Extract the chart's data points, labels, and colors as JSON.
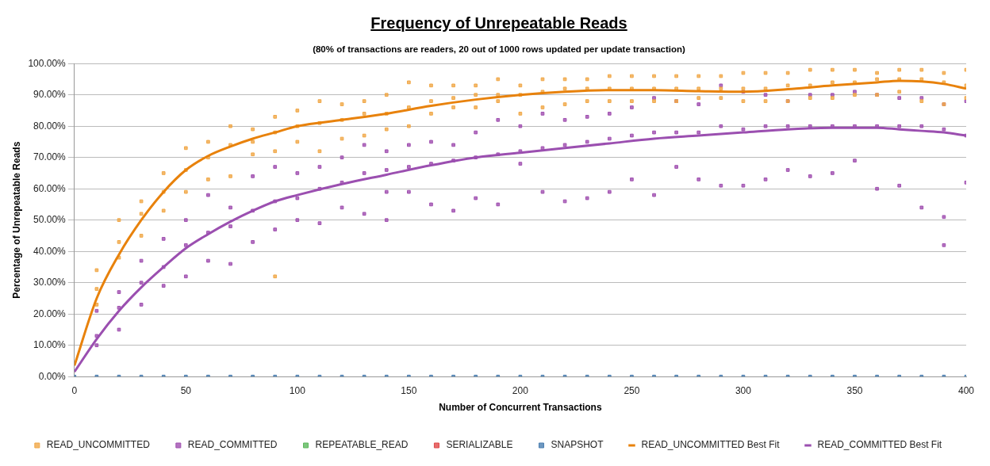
{
  "chart_data": {
    "type": "scatter",
    "title": "Frequency of Unrepeatable Reads",
    "subtitle": "(80% of transactions are readers, 20 out of 1000 rows updated per update transaction)",
    "xlabel": "Number of Concurrent Transactions",
    "ylabel": "Percentage of Unrepeatable Reads",
    "xlim": [
      0,
      400
    ],
    "xticks": [
      0,
      50,
      100,
      150,
      200,
      250,
      300,
      350,
      400
    ],
    "ylim": [
      0,
      100
    ],
    "yticks": [
      {
        "value": 0,
        "label": "0.00%"
      },
      {
        "value": 10,
        "label": "10.00%"
      },
      {
        "value": 20,
        "label": "20.00%"
      },
      {
        "value": 30,
        "label": "30.00%"
      },
      {
        "value": 40,
        "label": "40.00%"
      },
      {
        "value": 50,
        "label": "50.00%"
      },
      {
        "value": 60,
        "label": "60.00%"
      },
      {
        "value": 70,
        "label": "70.00%"
      },
      {
        "value": 80,
        "label": "80.00%"
      },
      {
        "value": 90,
        "label": "90.00%"
      },
      {
        "value": 100,
        "label": "100.00%"
      }
    ],
    "grid": "y",
    "legend": "bottom",
    "marker": "square",
    "series": [
      {
        "name": "READ_UNCOMMITTED",
        "color": "#f0a848",
        "x": [
          10,
          10,
          10,
          20,
          20,
          20,
          30,
          30,
          30,
          40,
          40,
          40,
          50,
          50,
          50,
          60,
          60,
          60,
          70,
          70,
          70,
          80,
          80,
          80,
          90,
          90,
          90,
          90,
          100,
          100,
          100,
          110,
          110,
          110,
          120,
          120,
          120,
          130,
          130,
          130,
          140,
          140,
          140,
          150,
          150,
          150,
          160,
          160,
          160,
          170,
          170,
          170,
          180,
          180,
          180,
          190,
          190,
          190,
          200,
          200,
          200,
          210,
          210,
          210,
          220,
          220,
          220,
          230,
          230,
          230,
          240,
          240,
          240,
          250,
          250,
          250,
          260,
          260,
          260,
          270,
          270,
          270,
          280,
          280,
          280,
          290,
          290,
          290,
          300,
          300,
          300,
          310,
          310,
          310,
          320,
          320,
          320,
          330,
          330,
          330,
          340,
          340,
          340,
          350,
          350,
          350,
          360,
          360,
          360,
          370,
          370,
          370,
          380,
          380,
          380,
          390,
          390,
          390,
          400,
          400,
          400
        ],
        "values": [
          23,
          28,
          34,
          38,
          43,
          50,
          45,
          52,
          56,
          53,
          59,
          65,
          59,
          66,
          73,
          63,
          70,
          75,
          64,
          74,
          80,
          71,
          75,
          79,
          32,
          72,
          78,
          83,
          75,
          80,
          85,
          72,
          81,
          88,
          76,
          82,
          87,
          77,
          84,
          88,
          79,
          84,
          90,
          80,
          86,
          94,
          84,
          88,
          93,
          86,
          89,
          93,
          86,
          90,
          93,
          88,
          90,
          95,
          84,
          90,
          93,
          86,
          91,
          95,
          87,
          92,
          95,
          88,
          92,
          95,
          88,
          92,
          96,
          88,
          92,
          96,
          88,
          92,
          96,
          88,
          92,
          96,
          89,
          92,
          96,
          89,
          92,
          96,
          88,
          92,
          97,
          88,
          92,
          97,
          88,
          93,
          97,
          89,
          93,
          98,
          89,
          94,
          98,
          90,
          94,
          98,
          90,
          95,
          97,
          91,
          95,
          98,
          88,
          95,
          98,
          87,
          94,
          97,
          89,
          93,
          98
        ]
      },
      {
        "name": "READ_COMMITTED",
        "color": "#a050b0",
        "x": [
          10,
          10,
          10,
          20,
          20,
          20,
          30,
          30,
          30,
          40,
          40,
          40,
          50,
          50,
          50,
          60,
          60,
          60,
          70,
          70,
          70,
          80,
          80,
          80,
          90,
          90,
          90,
          100,
          100,
          100,
          110,
          110,
          110,
          120,
          120,
          120,
          130,
          130,
          130,
          140,
          140,
          140,
          140,
          150,
          150,
          150,
          160,
          160,
          160,
          170,
          170,
          170,
          180,
          180,
          180,
          190,
          190,
          190,
          200,
          200,
          200,
          210,
          210,
          210,
          220,
          220,
          220,
          230,
          230,
          230,
          240,
          240,
          240,
          250,
          250,
          250,
          260,
          260,
          260,
          270,
          270,
          270,
          280,
          280,
          280,
          290,
          290,
          290,
          300,
          300,
          300,
          310,
          310,
          310,
          320,
          320,
          320,
          330,
          330,
          330,
          340,
          340,
          340,
          350,
          350,
          350,
          360,
          360,
          360,
          370,
          370,
          370,
          380,
          380,
          380,
          390,
          390,
          390,
          390,
          400,
          400,
          400
        ],
        "values": [
          10,
          13,
          21,
          15,
          22,
          27,
          23,
          30,
          37,
          29,
          35,
          44,
          32,
          42,
          50,
          37,
          46,
          58,
          36,
          48,
          54,
          43,
          53,
          64,
          47,
          56,
          67,
          50,
          57,
          65,
          49,
          60,
          67,
          54,
          62,
          70,
          52,
          65,
          74,
          50,
          59,
          66,
          72,
          59,
          67,
          74,
          55,
          68,
          75,
          53,
          69,
          74,
          57,
          70,
          78,
          55,
          71,
          82,
          68,
          72,
          80,
          59,
          73,
          84,
          56,
          74,
          82,
          57,
          75,
          83,
          59,
          76,
          84,
          63,
          77,
          86,
          58,
          78,
          89,
          67,
          78,
          88,
          63,
          78,
          87,
          61,
          80,
          93,
          61,
          79,
          91,
          63,
          80,
          90,
          66,
          80,
          88,
          64,
          80,
          90,
          65,
          80,
          90,
          69,
          80,
          91,
          60,
          80,
          90,
          61,
          80,
          89,
          54,
          80,
          89,
          42,
          51,
          79,
          87,
          62,
          77,
          88
        ]
      },
      {
        "name": "REPEATABLE_READ",
        "color": "#5cb85c"
      },
      {
        "name": "SERIALIZABLE",
        "color": "#e04848"
      },
      {
        "name": "SNAPSHOT",
        "color": "#4a7eb0",
        "x": [
          0,
          10,
          20,
          30,
          40,
          50,
          60,
          70,
          80,
          90,
          100,
          110,
          120,
          130,
          140,
          150,
          160,
          170,
          180,
          190,
          200,
          210,
          220,
          230,
          240,
          250,
          260,
          270,
          280,
          290,
          300,
          310,
          320,
          330,
          340,
          350,
          360,
          370,
          380,
          390,
          400
        ],
        "values": [
          0,
          0,
          0,
          0,
          0,
          0,
          0,
          0,
          0,
          0,
          0,
          0,
          0,
          0,
          0,
          0,
          0,
          0,
          0,
          0,
          0,
          0,
          0,
          0,
          0,
          0,
          0,
          0,
          0,
          0,
          0,
          0,
          0,
          0,
          0,
          0,
          0,
          0,
          0,
          0,
          0
        ]
      },
      {
        "name": "READ_UNCOMMITTED Best Fit",
        "type": "line",
        "color": "#e8820c",
        "line_style": "solid",
        "marker": "none",
        "x": [
          0,
          10,
          20,
          30,
          40,
          50,
          60,
          70,
          80,
          90,
          100,
          120,
          140,
          160,
          180,
          200,
          220,
          240,
          260,
          280,
          300,
          320,
          340,
          360,
          370,
          380,
          390,
          400
        ],
        "values": [
          3.5,
          25,
          39,
          50,
          59,
          66,
          70.5,
          73.5,
          76,
          78,
          80,
          82,
          84,
          86.5,
          88.5,
          90,
          91,
          91.5,
          91.5,
          91.2,
          91,
          91.8,
          93,
          94,
          94.5,
          94.3,
          93.5,
          92
        ]
      },
      {
        "name": "READ_COMMITTED Best Fit",
        "type": "line",
        "color": "#9b4fb0",
        "line_style": "solid",
        "marker": "none",
        "x": [
          0,
          10,
          20,
          30,
          40,
          50,
          60,
          70,
          80,
          90,
          100,
          120,
          140,
          160,
          180,
          200,
          220,
          240,
          260,
          280,
          300,
          320,
          340,
          360,
          370,
          380,
          390,
          400
        ],
        "values": [
          1.5,
          12,
          21,
          28.5,
          35,
          41,
          45.5,
          49.5,
          53,
          56,
          58,
          61.5,
          64.5,
          67.5,
          70,
          71.5,
          73,
          74.5,
          76,
          77,
          78,
          79,
          79.5,
          79.5,
          79,
          78.5,
          78,
          77
        ]
      }
    ]
  }
}
